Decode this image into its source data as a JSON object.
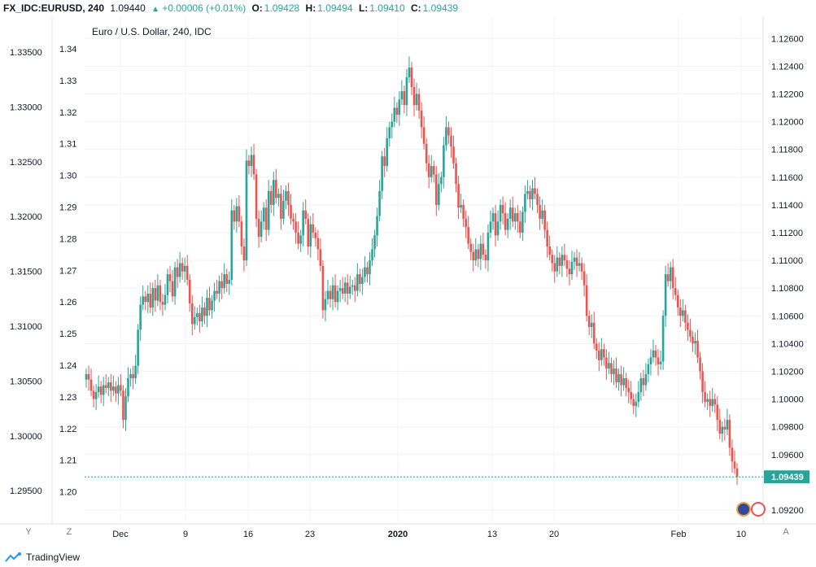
{
  "header": {
    "symbol": "FX_IDC:EURUSD, 240",
    "last": "1.09440",
    "change": "+0.00006 (+0.01%)",
    "o_label": "O:",
    "o": "1.09428",
    "h_label": "H:",
    "h": "1.09494",
    "l_label": "L:",
    "l": "1.09410",
    "c_label": "C:",
    "c": "1.09439"
  },
  "legend": "Euro / U.S. Dollar, 240, IDC",
  "price_tag": "1.09439",
  "bottom": {
    "y_btn": "Y",
    "z_btn": "Z",
    "a_btn": "A",
    "logo": "TradingView"
  },
  "colors": {
    "up": "#26a69a",
    "down": "#ef5350",
    "price_line": "#26a69a"
  },
  "chart_data": {
    "type": "candlestick",
    "x_ticks": [
      "Dec",
      "9",
      "16",
      "23",
      "2020",
      "13",
      "20",
      "Feb",
      "10"
    ],
    "right_axis_ticks": [
      "1.12600",
      "1.12400",
      "1.12200",
      "1.12000",
      "1.11800",
      "1.11600",
      "1.11400",
      "1.11200",
      "1.11000",
      "1.10800",
      "1.10600",
      "1.10400",
      "1.10200",
      "1.10000",
      "1.09800",
      "1.09600",
      "1.09200"
    ],
    "left_axis_ticks": [
      "1.33500",
      "1.33000",
      "1.32500",
      "1.32000",
      "1.31500",
      "1.31000",
      "1.30500",
      "1.30000",
      "1.29500"
    ],
    "inner_axis_ticks": [
      "1.34",
      "1.33",
      "1.32",
      "1.31",
      "1.30",
      "1.29",
      "1.28",
      "1.27",
      "1.26",
      "1.25",
      "1.24",
      "1.23",
      "1.22",
      "1.21",
      "1.20"
    ],
    "right_range": [
      1.091,
      1.1276
    ],
    "last_close": 1.09439,
    "closes": [
      1.1018,
      1.1014,
      1.1006,
      1.1,
      1.1005,
      1.1009,
      1.1003,
      1.101,
      1.1008,
      1.1012,
      1.1006,
      1.1009,
      1.1004,
      1.101,
      1.1006,
      1.0985,
      1.1002,
      1.1015,
      1.1018,
      1.1015,
      1.1024,
      1.105,
      1.1068,
      1.1074,
      1.107,
      1.1076,
      1.1066,
      1.108,
      1.1071,
      1.1082,
      1.107,
      1.1068,
      1.1075,
      1.109,
      1.1085,
      1.1074,
      1.1095,
      1.1088,
      1.1098,
      1.1092,
      1.1096,
      1.1086,
      1.1069,
      1.1054,
      1.1059,
      1.1062,
      1.1056,
      1.1066,
      1.106,
      1.1073,
      1.1064,
      1.1071,
      1.1078,
      1.1076,
      1.1085,
      1.108,
      1.109,
      1.1083,
      1.1086,
      1.1136,
      1.1128,
      1.1139,
      1.1128,
      1.111,
      1.11,
      1.1172,
      1.1168,
      1.1176,
      1.1162,
      1.113,
      1.1117,
      1.1128,
      1.1138,
      1.1122,
      1.115,
      1.114,
      1.1158,
      1.1145,
      1.1148,
      1.113,
      1.1143,
      1.115,
      1.114,
      1.113,
      1.1128,
      1.112,
      1.1112,
      1.1118,
      1.1136,
      1.113,
      1.111,
      1.1126,
      1.112,
      1.1116,
      1.1108,
      1.1096,
      1.1064,
      1.1072,
      1.1078,
      1.1072,
      1.1082,
      1.107,
      1.1078,
      1.108,
      1.1076,
      1.1084,
      1.1076,
      1.1081,
      1.1082,
      1.1078,
      1.109,
      1.1083,
      1.1088,
      1.1095,
      1.109,
      1.11,
      1.1108,
      1.1118,
      1.1132,
      1.115,
      1.1175,
      1.1168,
      1.1188,
      1.1196,
      1.12,
      1.121,
      1.1205,
      1.1216,
      1.1222,
      1.1212,
      1.1232,
      1.1239,
      1.1225,
      1.1212,
      1.122,
      1.1208,
      1.1196,
      1.1184,
      1.117,
      1.116,
      1.1168,
      1.1162,
      1.114,
      1.1155,
      1.116,
      1.1183,
      1.1196,
      1.119,
      1.1182,
      1.117,
      1.1155,
      1.1138,
      1.114,
      1.113,
      1.1124,
      1.1112,
      1.1106,
      1.11,
      1.1108,
      1.1101,
      1.1112,
      1.1104,
      1.11,
      1.112,
      1.1128,
      1.1134,
      1.1118,
      1.1128,
      1.114,
      1.1134,
      1.1122,
      1.113,
      1.1138,
      1.1128,
      1.1134,
      1.1128,
      1.112,
      1.1135,
      1.1148,
      1.115,
      1.1144,
      1.1152,
      1.1148,
      1.114,
      1.113,
      1.1136,
      1.1122,
      1.111,
      1.1104,
      1.1098,
      1.1092,
      1.1102,
      1.1096,
      1.1104,
      1.11,
      1.1094,
      1.109,
      1.1099,
      1.1102,
      1.1096,
      1.1098,
      1.1092,
      1.1082,
      1.106,
      1.1052,
      1.1055,
      1.104,
      1.1035,
      1.1028,
      1.1036,
      1.103,
      1.1022,
      1.1026,
      1.1018,
      1.1022,
      1.1012,
      1.1018,
      1.101,
      1.1015,
      1.1008,
      1.1005,
      1.1,
      1.0995,
      1.0998,
      1.1005,
      1.1015,
      1.101,
      1.1018,
      1.1025,
      1.103,
      1.1035,
      1.103,
      1.1025,
      1.1027,
      1.106,
      1.109,
      1.1085,
      1.1095,
      1.108,
      1.1075,
      1.1066,
      1.106,
      1.1064,
      1.1055,
      1.105,
      1.1045,
      1.104,
      1.1042,
      1.103,
      1.102,
      1.1005,
      1.0998,
      1.1,
      1.0995,
      1.1,
      1.0996,
      1.0985,
      1.0975,
      1.098,
      1.0978,
      1.0985,
      1.0965,
      1.0955,
      1.095,
      1.0944
    ]
  }
}
